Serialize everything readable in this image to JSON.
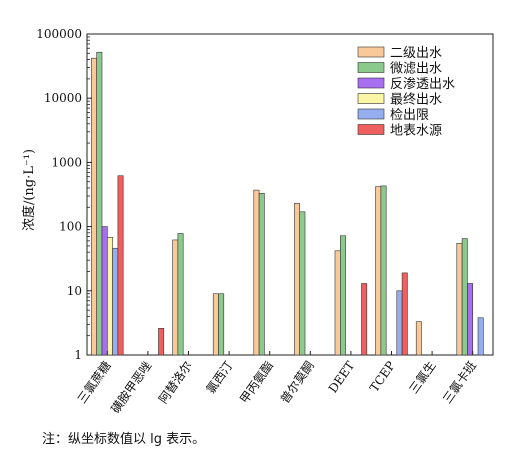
{
  "chart_data": {
    "type": "bar",
    "y_scale": "log",
    "ylim": [
      1,
      100000
    ],
    "yticks": [
      1,
      10,
      100,
      1000,
      10000,
      100000
    ],
    "ytick_labels": [
      "1",
      "10",
      "100",
      "1000",
      "10000",
      "100000"
    ],
    "ylabel": "浓度/(ng·L⁻¹)",
    "xlabel": "",
    "title": "",
    "legend_position": "top-right",
    "grid": false,
    "categories": [
      "三氯蔗糖",
      "磺胺甲恶唑",
      "阿替洛尔",
      "氯西汀",
      "甲丙氨酯",
      "普尔莫酮",
      "DEET",
      "TCEP",
      "三氯生",
      "三氯卡班"
    ],
    "series": [
      {
        "name": "二级出水",
        "color": "#f9c99a",
        "values": [
          42000,
          null,
          62,
          9,
          370,
          230,
          42,
          420,
          3.3,
          55
        ]
      },
      {
        "name": "微滤出水",
        "color": "#8cc98c",
        "values": [
          52000,
          null,
          78,
          9,
          330,
          170,
          72,
          430,
          null,
          65
        ]
      },
      {
        "name": "反渗透出水",
        "color": "#a86ef0",
        "values": [
          100,
          null,
          null,
          null,
          null,
          null,
          null,
          null,
          null,
          13
        ]
      },
      {
        "name": "最终出水",
        "color": "#fbf5a6",
        "values": [
          68,
          null,
          null,
          null,
          null,
          null,
          null,
          null,
          null,
          null
        ]
      },
      {
        "name": "检出限",
        "color": "#94aef0",
        "values": [
          46,
          null,
          null,
          null,
          null,
          null,
          null,
          10,
          null,
          3.8
        ]
      },
      {
        "name": "地表水源",
        "color": "#ef5f5f",
        "values": [
          620,
          2.6,
          null,
          null,
          null,
          null,
          13,
          19,
          null,
          null
        ]
      }
    ]
  },
  "note": "注：纵坐标数值以 lg 表示。"
}
